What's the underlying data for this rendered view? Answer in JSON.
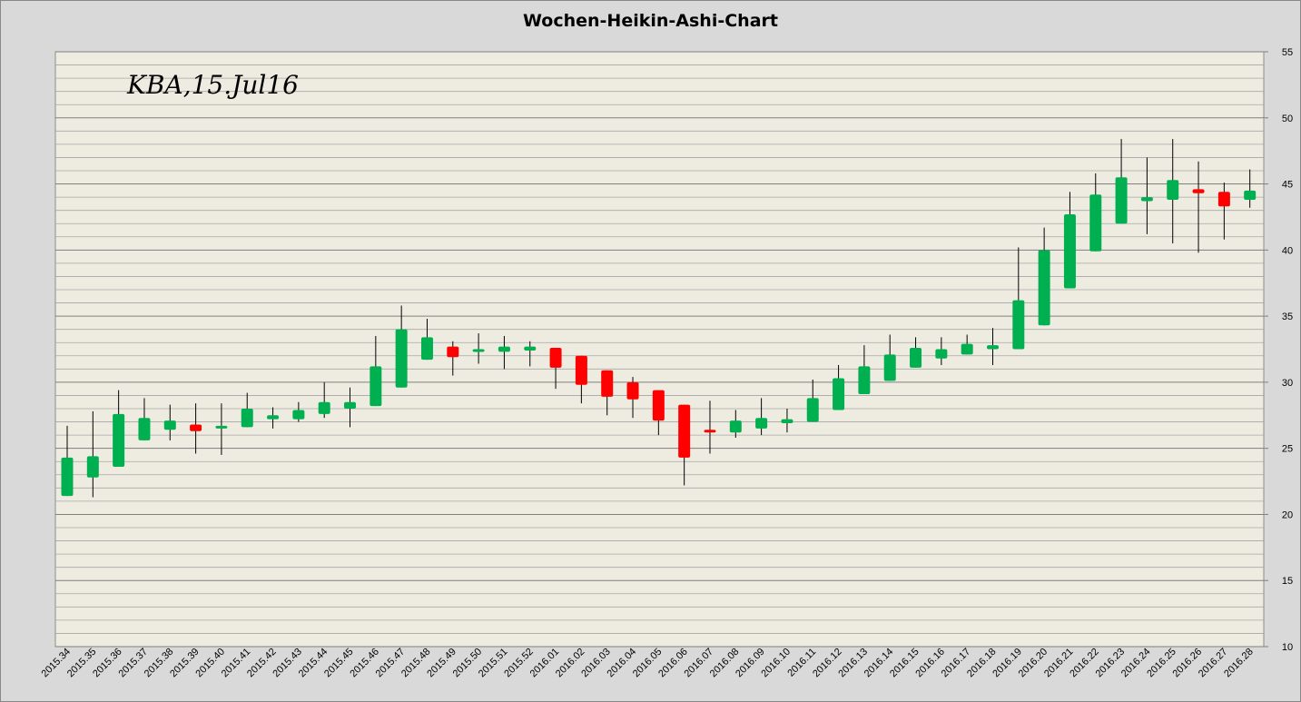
{
  "chart_data": {
    "type": "candlestick",
    "title": "Wochen-Heikin-Ashi-Chart",
    "annotation": "KBA,15.Jul16",
    "ylim": [
      10,
      55
    ],
    "y_ticks": [
      10,
      15,
      20,
      25,
      30,
      35,
      40,
      45,
      50,
      55
    ],
    "y_axis_position": "right",
    "grid": true,
    "colors": {
      "up": "#00b050",
      "down": "#ff0000",
      "plot_background": "#eeece1",
      "page_background": "#d9d9d9",
      "major_grid": "#7f7f7f",
      "minor_grid": "#a6a6a6"
    },
    "categories": [
      "2015.34",
      "2015.35",
      "2015.36",
      "2015.37",
      "2015.38",
      "2015.39",
      "2015.40",
      "2015.41",
      "2015.42",
      "2015.43",
      "2015.44",
      "2015.45",
      "2015.46",
      "2015.47",
      "2015.48",
      "2015.49",
      "2015.50",
      "2015.51",
      "2015.52",
      "2016.01",
      "2016.02",
      "2016.03",
      "2016.04",
      "2016.05",
      "2016.06",
      "2016.07",
      "2016.08",
      "2016.09",
      "2016.10",
      "2016.11",
      "2016.12",
      "2016.13",
      "2016.14",
      "2016.15",
      "2016.16",
      "2016.17",
      "2016.18",
      "2016.19",
      "2016.20",
      "2016.21",
      "2016.22",
      "2016.23",
      "2016.24",
      "2016.25",
      "2016.26",
      "2016.27",
      "2016.28"
    ],
    "candles": [
      {
        "open": 21.4,
        "close": 24.3,
        "high": 26.7,
        "low": 21.4
      },
      {
        "open": 22.8,
        "close": 24.4,
        "high": 27.8,
        "low": 21.3
      },
      {
        "open": 23.6,
        "close": 27.6,
        "high": 29.4,
        "low": 23.6
      },
      {
        "open": 25.6,
        "close": 27.3,
        "high": 28.8,
        "low": 25.6
      },
      {
        "open": 26.4,
        "close": 27.1,
        "high": 28.3,
        "low": 25.6
      },
      {
        "open": 26.8,
        "close": 26.3,
        "high": 28.4,
        "low": 24.6
      },
      {
        "open": 26.5,
        "close": 26.7,
        "high": 28.4,
        "low": 24.5
      },
      {
        "open": 26.6,
        "close": 28.0,
        "high": 29.2,
        "low": 26.6
      },
      {
        "open": 27.2,
        "close": 27.5,
        "high": 28.1,
        "low": 26.5
      },
      {
        "open": 27.2,
        "close": 27.9,
        "high": 28.5,
        "low": 27.0
      },
      {
        "open": 27.6,
        "close": 28.5,
        "high": 30.0,
        "low": 27.3
      },
      {
        "open": 28.0,
        "close": 28.5,
        "high": 29.6,
        "low": 26.6
      },
      {
        "open": 28.2,
        "close": 31.2,
        "high": 33.5,
        "low": 28.2
      },
      {
        "open": 29.6,
        "close": 34.0,
        "high": 35.8,
        "low": 29.6
      },
      {
        "open": 31.7,
        "close": 33.4,
        "high": 34.8,
        "low": 31.7
      },
      {
        "open": 32.7,
        "close": 31.9,
        "high": 33.1,
        "low": 30.5
      },
      {
        "open": 32.3,
        "close": 32.5,
        "high": 33.7,
        "low": 31.4
      },
      {
        "open": 32.3,
        "close": 32.7,
        "high": 33.5,
        "low": 31.0
      },
      {
        "open": 32.4,
        "close": 32.7,
        "high": 33.1,
        "low": 31.2
      },
      {
        "open": 32.6,
        "close": 31.1,
        "high": 32.6,
        "low": 29.5
      },
      {
        "open": 32.0,
        "close": 29.8,
        "high": 32.0,
        "low": 28.4
      },
      {
        "open": 30.9,
        "close": 28.9,
        "high": 30.9,
        "low": 27.5
      },
      {
        "open": 30.0,
        "close": 28.7,
        "high": 30.4,
        "low": 27.3
      },
      {
        "open": 29.4,
        "close": 27.1,
        "high": 29.4,
        "low": 26.0
      },
      {
        "open": 28.3,
        "close": 24.3,
        "high": 28.3,
        "low": 22.2
      },
      {
        "open": 26.4,
        "close": 26.2,
        "high": 28.6,
        "low": 24.6
      },
      {
        "open": 26.2,
        "close": 27.1,
        "high": 27.9,
        "low": 25.8
      },
      {
        "open": 26.5,
        "close": 27.3,
        "high": 28.8,
        "low": 26.0
      },
      {
        "open": 26.9,
        "close": 27.2,
        "high": 28.0,
        "low": 26.2
      },
      {
        "open": 27.0,
        "close": 28.8,
        "high": 30.2,
        "low": 27.0
      },
      {
        "open": 27.9,
        "close": 30.3,
        "high": 31.3,
        "low": 27.9
      },
      {
        "open": 29.1,
        "close": 31.2,
        "high": 32.8,
        "low": 29.1
      },
      {
        "open": 30.1,
        "close": 32.1,
        "high": 33.6,
        "low": 30.1
      },
      {
        "open": 31.1,
        "close": 32.6,
        "high": 33.4,
        "low": 31.1
      },
      {
        "open": 31.8,
        "close": 32.5,
        "high": 33.4,
        "low": 31.3
      },
      {
        "open": 32.1,
        "close": 32.9,
        "high": 33.6,
        "low": 32.1
      },
      {
        "open": 32.5,
        "close": 32.8,
        "high": 34.1,
        "low": 31.3
      },
      {
        "open": 32.5,
        "close": 36.2,
        "high": 40.2,
        "low": 32.5
      },
      {
        "open": 34.3,
        "close": 40.0,
        "high": 41.7,
        "low": 34.3
      },
      {
        "open": 37.1,
        "close": 42.7,
        "high": 44.4,
        "low": 37.1
      },
      {
        "open": 39.9,
        "close": 44.2,
        "high": 45.8,
        "low": 39.9
      },
      {
        "open": 42.0,
        "close": 45.5,
        "high": 48.4,
        "low": 42.0
      },
      {
        "open": 43.7,
        "close": 44.0,
        "high": 47.0,
        "low": 41.2
      },
      {
        "open": 43.8,
        "close": 45.3,
        "high": 48.4,
        "low": 40.5
      },
      {
        "open": 44.6,
        "close": 44.3,
        "high": 46.7,
        "low": 39.8
      },
      {
        "open": 44.4,
        "close": 43.3,
        "high": 45.1,
        "low": 40.8
      },
      {
        "open": 43.8,
        "close": 44.5,
        "high": 46.1,
        "low": 43.2
      }
    ]
  }
}
